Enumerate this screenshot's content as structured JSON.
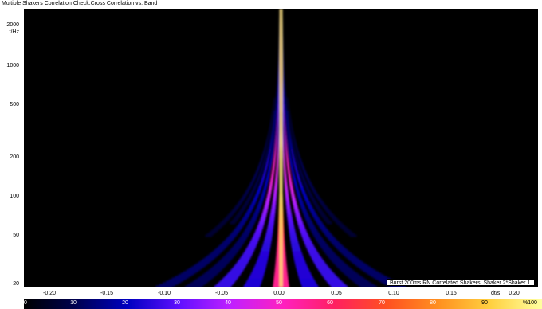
{
  "title": "Multiple Shakers Correlation Check.Cross Correlation vs. Band",
  "yaxis": {
    "unit": "f/Hz",
    "ticks": [
      "2000",
      "1000",
      "500",
      "200",
      "100",
      "50",
      "20"
    ]
  },
  "xaxis": {
    "unit": "dt/s",
    "ticks": [
      "-0,20",
      "-0,15",
      "-0,10",
      "-0,05",
      "0,00",
      "0,05",
      "0,10",
      "0,15",
      "0,20"
    ]
  },
  "legend": "Burst 200ms RN Correlated Shakers, Shaker 2*Shaker 1",
  "colorbar": {
    "ticks": [
      "0",
      "10",
      "20",
      "30",
      "40",
      "50",
      "60",
      "70",
      "80",
      "90",
      "%100"
    ],
    "colors": [
      "#000000",
      "#000050",
      "#0000c0",
      "#6010ff",
      "#c020ff",
      "#ff20c0",
      "#ff2060",
      "#ff5020",
      "#ff9020",
      "#ffd040",
      "#ffffa0"
    ]
  },
  "chart_data": {
    "type": "heatmap",
    "title": "Multiple Shakers Correlation Check.Cross Correlation vs. Band",
    "xlabel": "dt/s",
    "ylabel": "f/Hz",
    "xlim": [
      -0.22,
      0.22
    ],
    "ylim": [
      20,
      2500
    ],
    "yscale": "log",
    "colorscale": "%100",
    "peak_dt": 0.0
  }
}
